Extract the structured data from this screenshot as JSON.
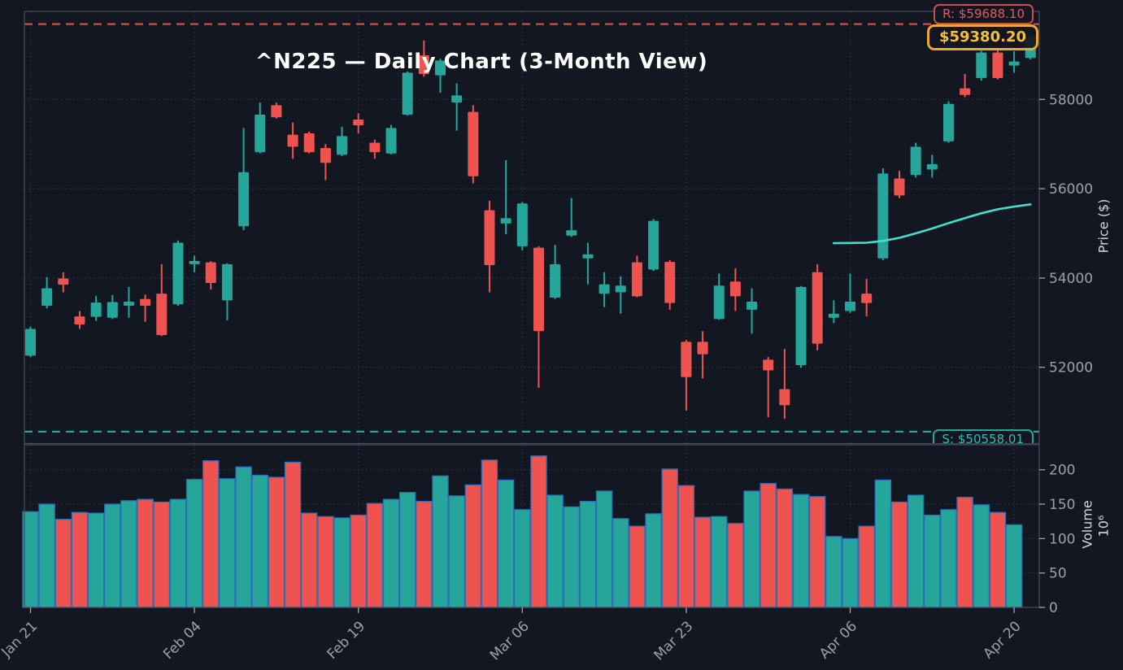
{
  "title": "^N225 — Daily Chart (3-Month View)",
  "badges": {
    "resistance": "R: $59688.10",
    "current_price": "$59380.20",
    "support": "S: $50558.01"
  },
  "price_axis": {
    "label": "Price ($)",
    "ticks": [
      52000,
      54000,
      56000,
      58000
    ]
  },
  "volume_axis": {
    "label": "Volume",
    "multiplier": "10⁶",
    "ticks": [
      0,
      50,
      100,
      150,
      200
    ]
  },
  "x_axis": {
    "tick_labels": [
      "Jan 21",
      "Feb 04",
      "Feb 19",
      "Mar 06",
      "Mar 23",
      "Apr 06",
      "Apr 20"
    ],
    "tick_indices": [
      0,
      10,
      20,
      30,
      40,
      50,
      60
    ]
  },
  "colors": {
    "background": "#131722",
    "bullish": "#26a69a",
    "bearish": "#ef5350",
    "volume_edge": "#2a6db8",
    "ma_line": "#40e0d0",
    "resistance": "#c94f4f",
    "support": "#26a69a",
    "grid": "#343b4d",
    "spine": "#464d5c",
    "tick_label": "#9aa1ad"
  },
  "chart_data": {
    "type": "candlestick",
    "symbol": "^N225",
    "interval": "Daily",
    "view": "3-Month",
    "resistance_level": 59688.1,
    "support_level": 50558.01,
    "last_price": 59380.2,
    "ylim": [
      50200,
      60050
    ],
    "volume_unit_millions": true,
    "columns": [
      "open",
      "high",
      "low",
      "close",
      "volume_millions"
    ],
    "candles": [
      [
        52260,
        52910,
        52230,
        52860,
        139
      ],
      [
        53380,
        54020,
        53320,
        53770,
        150
      ],
      [
        53990,
        54130,
        53680,
        53850,
        128
      ],
      [
        53140,
        53260,
        52860,
        52960,
        138
      ],
      [
        53130,
        53600,
        53040,
        53450,
        137
      ],
      [
        53110,
        53620,
        53080,
        53460,
        150
      ],
      [
        53380,
        53800,
        53110,
        53470,
        155
      ],
      [
        53530,
        53630,
        53020,
        53380,
        157
      ],
      [
        53650,
        54310,
        52700,
        52720,
        153
      ],
      [
        53410,
        54840,
        53380,
        54790,
        157
      ],
      [
        54310,
        54500,
        54130,
        54380,
        186
      ],
      [
        54350,
        54380,
        53740,
        53890,
        213
      ],
      [
        53500,
        54330,
        53050,
        54310,
        187
      ],
      [
        55160,
        57360,
        55070,
        56370,
        204
      ],
      [
        56820,
        57930,
        56790,
        57660,
        192
      ],
      [
        57870,
        57930,
        57570,
        57600,
        189
      ],
      [
        57210,
        57480,
        56670,
        56940,
        211
      ],
      [
        57240,
        57280,
        56790,
        56820,
        137
      ],
      [
        56910,
        57000,
        56190,
        56580,
        132
      ],
      [
        56760,
        57390,
        56730,
        57180,
        130
      ],
      [
        57550,
        57690,
        57240,
        57420,
        134
      ],
      [
        57030,
        57100,
        56670,
        56820,
        151
      ],
      [
        56790,
        57430,
        56770,
        57360,
        157
      ],
      [
        57660,
        58630,
        57640,
        58600,
        167
      ],
      [
        58990,
        59320,
        58510,
        58570,
        154
      ],
      [
        58540,
        58910,
        58150,
        58870,
        191
      ],
      [
        57930,
        58360,
        57300,
        58090,
        162
      ],
      [
        57720,
        57870,
        56120,
        56280,
        178
      ],
      [
        55520,
        55730,
        53680,
        54290,
        214
      ],
      [
        55220,
        56640,
        54980,
        55340,
        185
      ],
      [
        54710,
        55700,
        54620,
        55670,
        142
      ],
      [
        54680,
        54710,
        51540,
        52810,
        220
      ],
      [
        53560,
        54740,
        53530,
        54310,
        163
      ],
      [
        54950,
        55790,
        54920,
        55070,
        146
      ],
      [
        54440,
        54790,
        53860,
        54530,
        154
      ],
      [
        53650,
        54130,
        53350,
        53860,
        169
      ],
      [
        53680,
        54040,
        53200,
        53830,
        129
      ],
      [
        54350,
        54500,
        53570,
        53590,
        118
      ],
      [
        54190,
        55320,
        54160,
        55280,
        136
      ],
      [
        54360,
        54400,
        53290,
        53440,
        201
      ],
      [
        52570,
        52610,
        51030,
        51780,
        177
      ],
      [
        52570,
        52810,
        51750,
        52290,
        131
      ],
      [
        53080,
        54100,
        53060,
        53830,
        132
      ],
      [
        53920,
        54220,
        53260,
        53590,
        122
      ],
      [
        53290,
        53770,
        52750,
        53470,
        169
      ],
      [
        52170,
        52230,
        50880,
        51930,
        180
      ],
      [
        51510,
        52410,
        50850,
        51150,
        172
      ],
      [
        52050,
        53820,
        51990,
        53800,
        164
      ],
      [
        54130,
        54310,
        52380,
        52530,
        161
      ],
      [
        53110,
        53500,
        52990,
        53200,
        103
      ],
      [
        53260,
        54100,
        53220,
        53470,
        100
      ],
      [
        53650,
        53980,
        53140,
        53440,
        118
      ],
      [
        54440,
        56460,
        54400,
        56340,
        185
      ],
      [
        56230,
        56400,
        55790,
        55850,
        153
      ],
      [
        56310,
        57030,
        56250,
        56940,
        163
      ],
      [
        56430,
        56760,
        56250,
        56550,
        134
      ],
      [
        57060,
        57960,
        57030,
        57900,
        142
      ],
      [
        58250,
        58570,
        58050,
        58100,
        160
      ],
      [
        58480,
        59090,
        58420,
        59050,
        149
      ],
      [
        59050,
        59100,
        58450,
        58480,
        138
      ],
      [
        58760,
        59080,
        58600,
        58850,
        120
      ],
      [
        58930,
        59430,
        58900,
        59380.2,
        null
      ]
    ],
    "moving_average": {
      "start_index": 49,
      "values": [
        54780,
        54785,
        54790,
        54830,
        54900,
        55000,
        55110,
        55230,
        55340,
        55450,
        55540,
        55600,
        55650
      ]
    }
  }
}
